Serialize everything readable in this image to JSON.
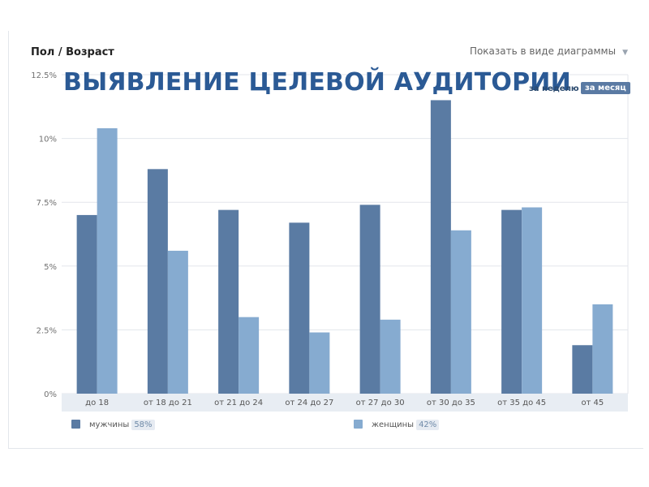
{
  "header": {
    "title": "Пол / Возраст",
    "view_select": "Показать в виде диаграммы"
  },
  "overlay_title": "ВЫЯВЛЕНИЕ ЦЕЛЕВОЙ АУДИТОРИИ",
  "period": {
    "week": "за неделю",
    "month": "за месяц"
  },
  "legend": {
    "men": {
      "label": "мужчины",
      "share": "58%"
    },
    "women": {
      "label": "женщины",
      "share": "42%"
    }
  },
  "colors": {
    "men": "#5a7ba3",
    "women": "#86abd0",
    "grid": "#e3e6eb",
    "axis_band": "#e8edf3"
  },
  "chart_data": {
    "type": "bar",
    "categories": [
      "до 18",
      "от 18 до 21",
      "от 21 до 24",
      "от 24 до 27",
      "от 27 до 30",
      "от 30 до 35",
      "от 35 до 45",
      "от 45"
    ],
    "series": [
      {
        "name": "мужчины",
        "values": [
          7.0,
          8.8,
          7.2,
          6.7,
          7.4,
          11.5,
          7.2,
          1.9
        ]
      },
      {
        "name": "женщины",
        "values": [
          10.4,
          5.6,
          3.0,
          2.4,
          2.9,
          6.4,
          7.3,
          3.5
        ]
      }
    ],
    "y_ticks": [
      "0%",
      "2.5%",
      "5%",
      "7.5%",
      "10%",
      "12.5%"
    ],
    "y_tick_values": [
      0,
      2.5,
      5,
      7.5,
      10,
      12.5
    ],
    "ylim": [
      0,
      12.5
    ],
    "grid": true,
    "legend_position": "bottom"
  }
}
